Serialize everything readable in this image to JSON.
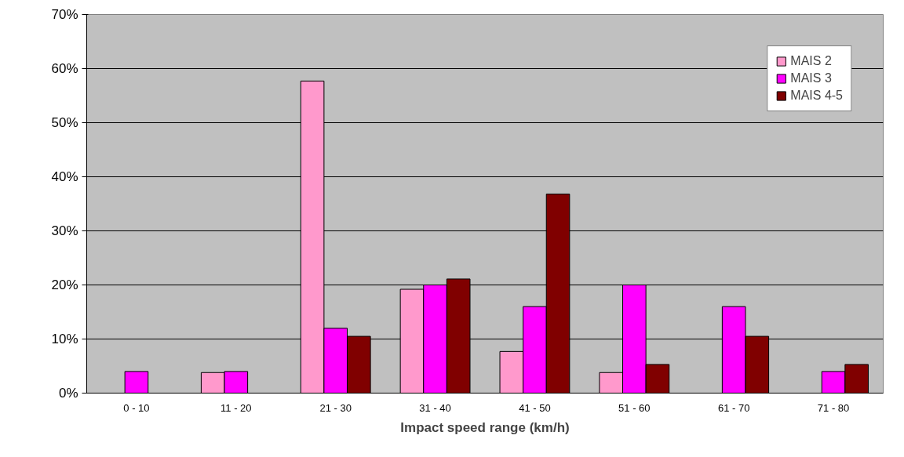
{
  "chart_data": {
    "type": "bar",
    "xlabel": "Impact speed range (km/h)",
    "categories": [
      "0 - 10",
      "11 - 20",
      "21 - 30",
      "31 - 40",
      "41 - 50",
      "51 - 60",
      "61 - 70",
      "71 - 80"
    ],
    "series": [
      {
        "name": "MAIS 2",
        "color": "#ff99cc",
        "values": [
          null,
          3.8,
          57.7,
          19.2,
          7.7,
          3.8,
          null,
          null
        ]
      },
      {
        "name": "MAIS 3",
        "color": "#ff00ff",
        "values": [
          4,
          4,
          12,
          20,
          16,
          20,
          16,
          4
        ]
      },
      {
        "name": "MAIS 4-5",
        "color": "#800000",
        "values": [
          null,
          null,
          10.5,
          21.1,
          36.8,
          5.3,
          10.5,
          5.3
        ]
      }
    ],
    "ylim": [
      0,
      70
    ],
    "yticks": [
      {
        "value": 0,
        "label": "0%"
      },
      {
        "value": 10,
        "label": "10%"
      },
      {
        "value": 20,
        "label": "20%"
      },
      {
        "value": 30,
        "label": "30%"
      },
      {
        "value": 40,
        "label": "40%"
      },
      {
        "value": 50,
        "label": "50%"
      },
      {
        "value": 60,
        "label": "60%"
      },
      {
        "value": 70,
        "label": "70%"
      }
    ],
    "grid": "y",
    "legend": "top right"
  }
}
